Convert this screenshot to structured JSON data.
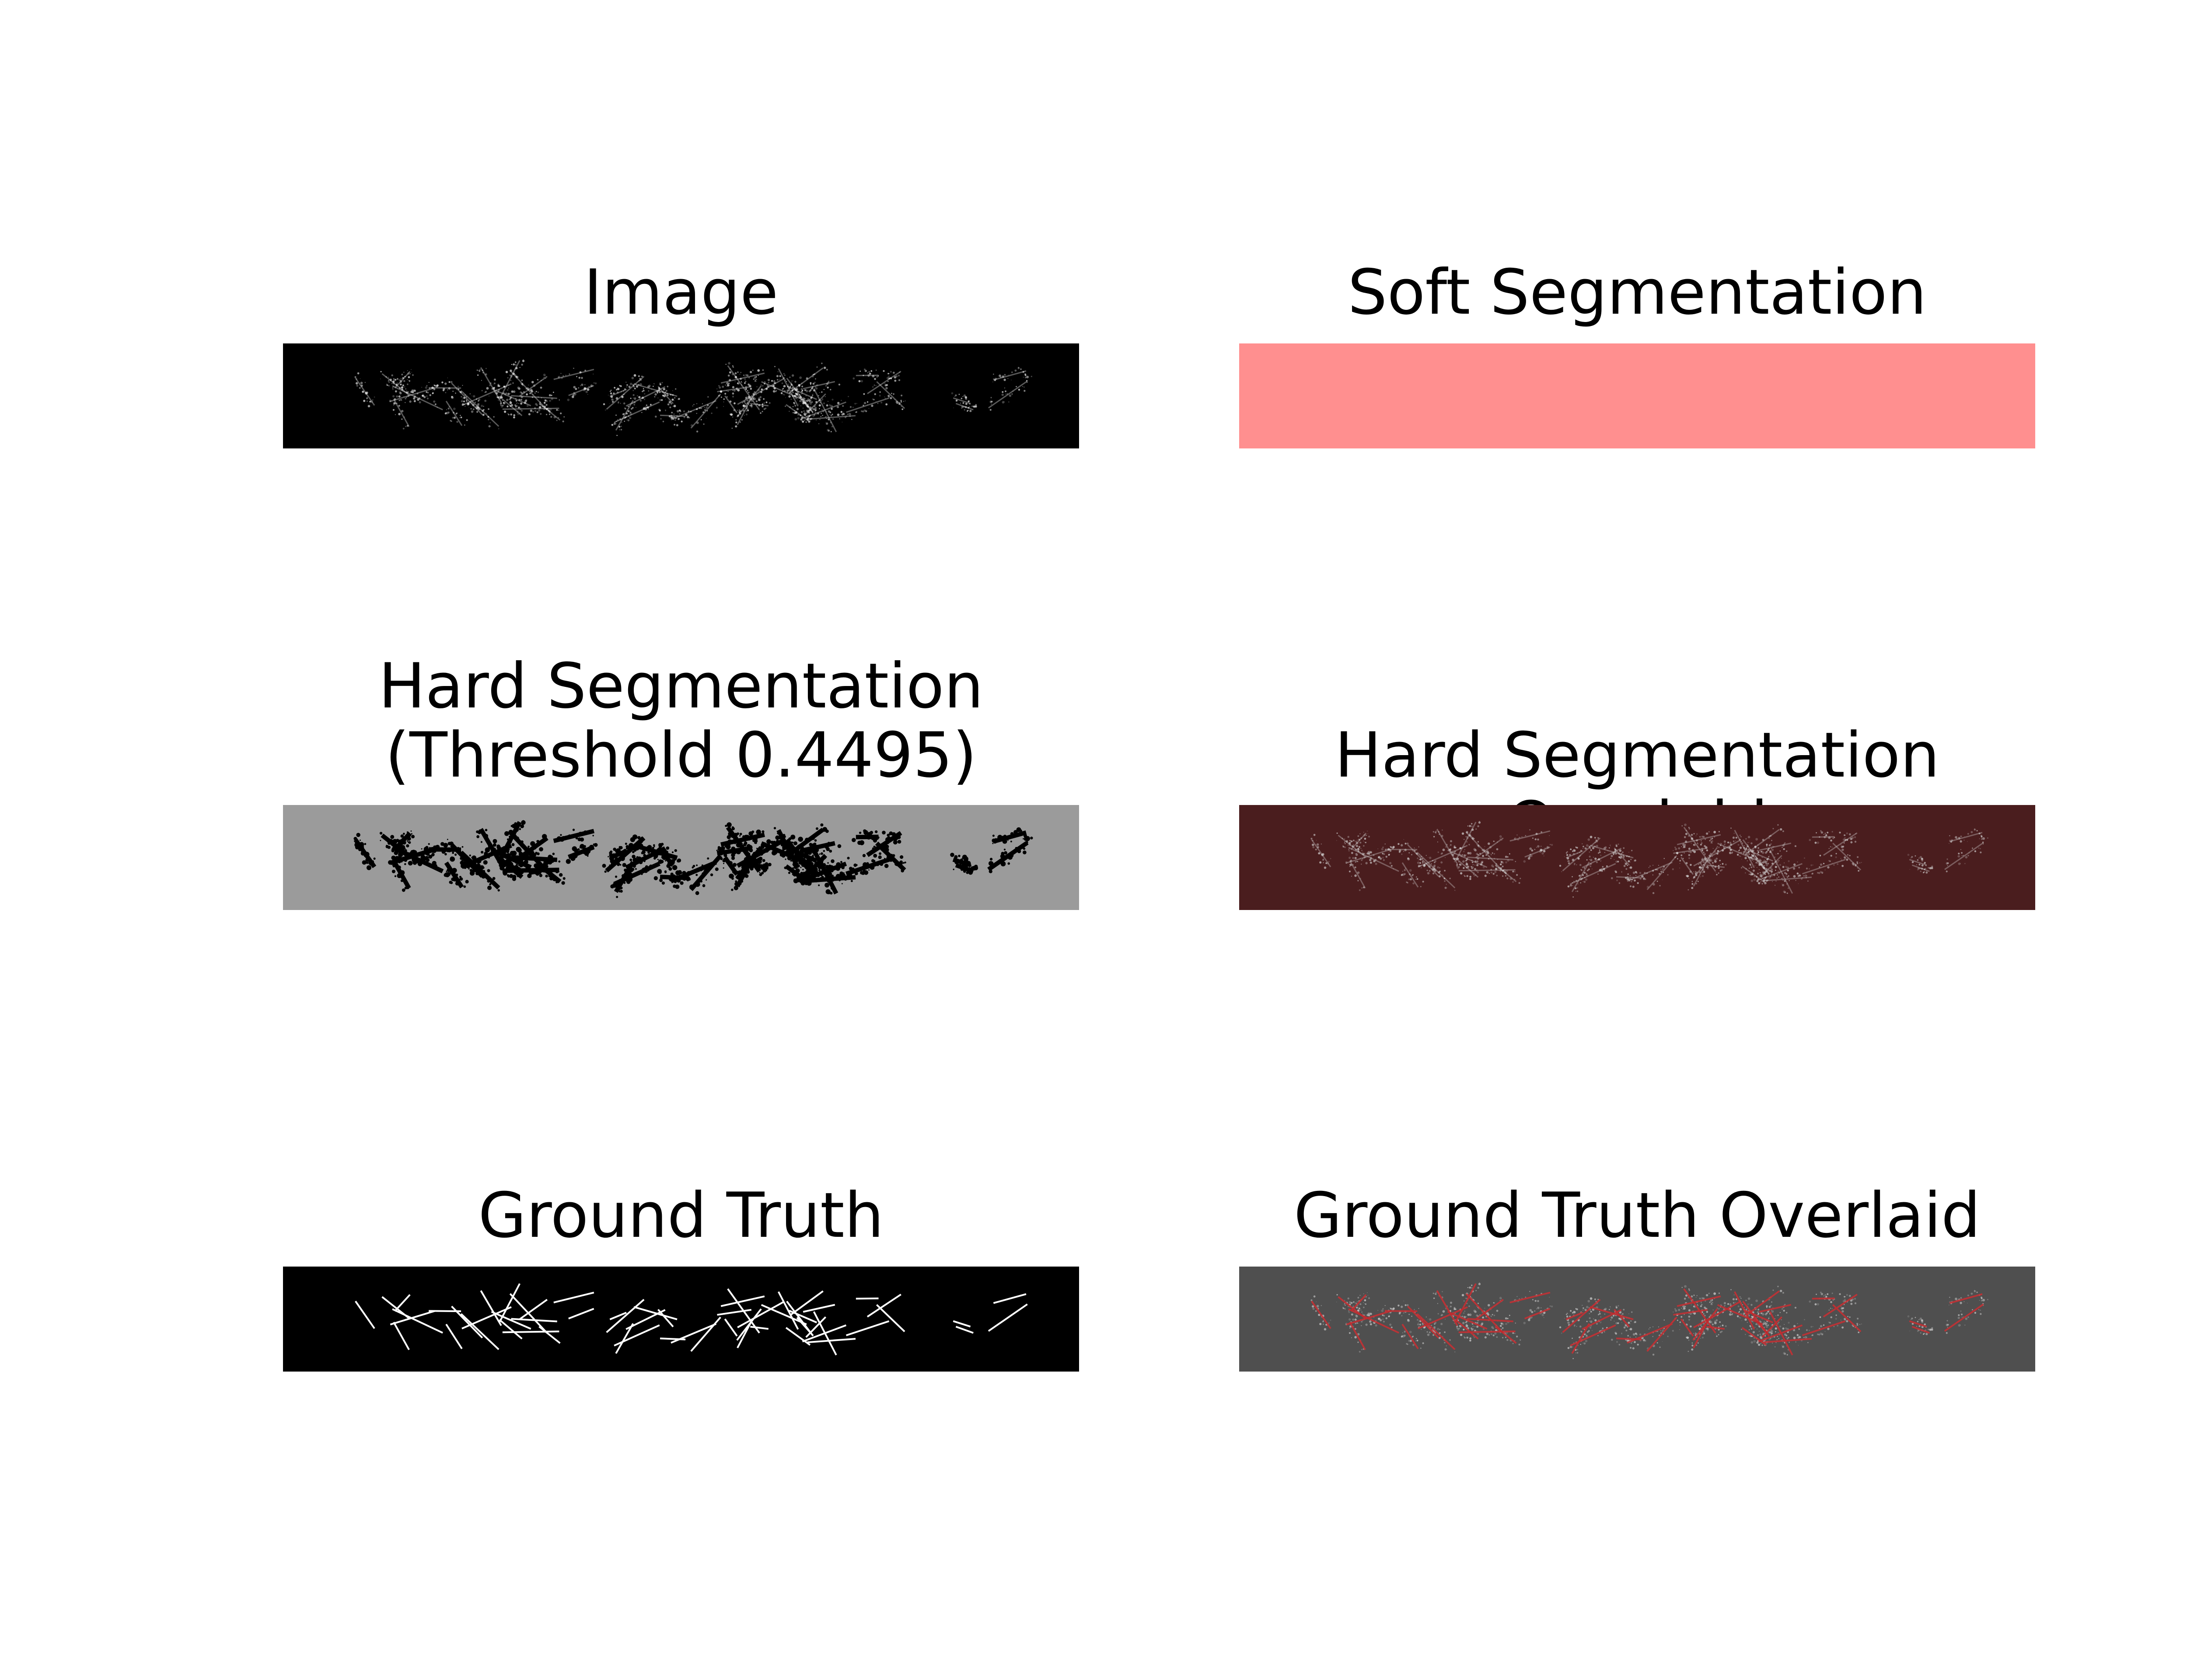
{
  "figure": {
    "panels": [
      {
        "id": "image",
        "title": "Image",
        "background": "#000000",
        "kind": "image"
      },
      {
        "id": "soft",
        "title": "Soft Segmentation",
        "background": "#ff8f8f",
        "kind": "soft"
      },
      {
        "id": "hard",
        "title": "Hard Segmentation\n(Threshold 0.4495)",
        "background": "#9b9b9b",
        "kind": "hard"
      },
      {
        "id": "hard_overlay",
        "title": "Hard Segmentation Overlaid",
        "background": "#4a1d1e",
        "kind": "hard_overlay"
      },
      {
        "id": "gt",
        "title": "Ground Truth",
        "background": "#000000",
        "kind": "gt"
      },
      {
        "id": "gt_overlay",
        "title": "Ground Truth Overlaid",
        "background": "#4f4f4f",
        "kind": "gt_overlay"
      }
    ]
  }
}
